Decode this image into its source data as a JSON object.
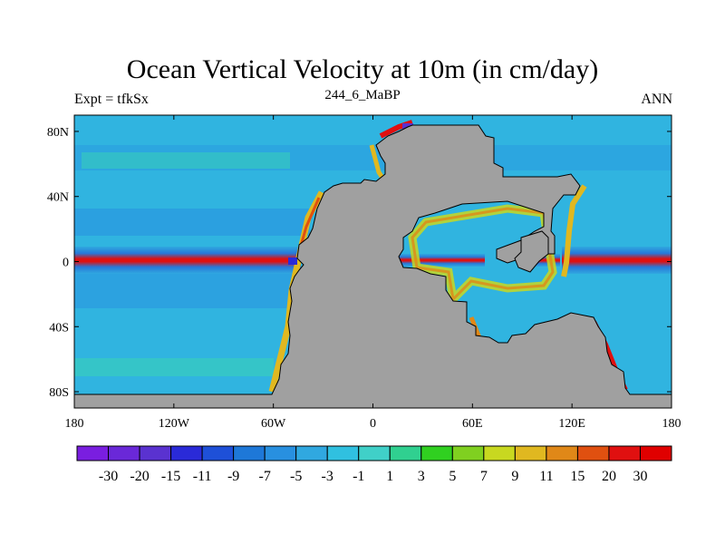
{
  "chart_data": {
    "type": "heatmap",
    "title": "Ocean Vertical Velocity at 10m (in cm/day)",
    "subtitle_left": "Expt = tfkSx",
    "subtitle_center": "244_6_MaBP",
    "subtitle_right": "ANN",
    "x_ticks": [
      "180",
      "120W",
      "60W",
      "0",
      "60E",
      "120E",
      "180"
    ],
    "y_ticks": [
      "80N",
      "40N",
      "0",
      "40S",
      "80S"
    ],
    "xlim": [
      -180,
      180
    ],
    "ylim": [
      -90,
      90
    ],
    "colorbar": {
      "labels": [
        "-30",
        "-20",
        "-15",
        "-11",
        "-9",
        "-7",
        "-5",
        "-3",
        "-1",
        "1",
        "3",
        "5",
        "7",
        "9",
        "11",
        "15",
        "20",
        "30"
      ],
      "colors": [
        "#7a1ee0",
        "#6a28d8",
        "#5a32d0",
        "#2a2ad8",
        "#1e50d8",
        "#1e78d8",
        "#2890e0",
        "#30a8e0",
        "#30c0e0",
        "#40d0c8",
        "#30d090",
        "#30d020",
        "#80d020",
        "#c8d820",
        "#e0b820",
        "#e08818",
        "#e05010",
        "#e01010",
        "#e00000"
      ]
    },
    "land_color": "#a0a0a0",
    "ocean_color": "#30b4e0"
  }
}
